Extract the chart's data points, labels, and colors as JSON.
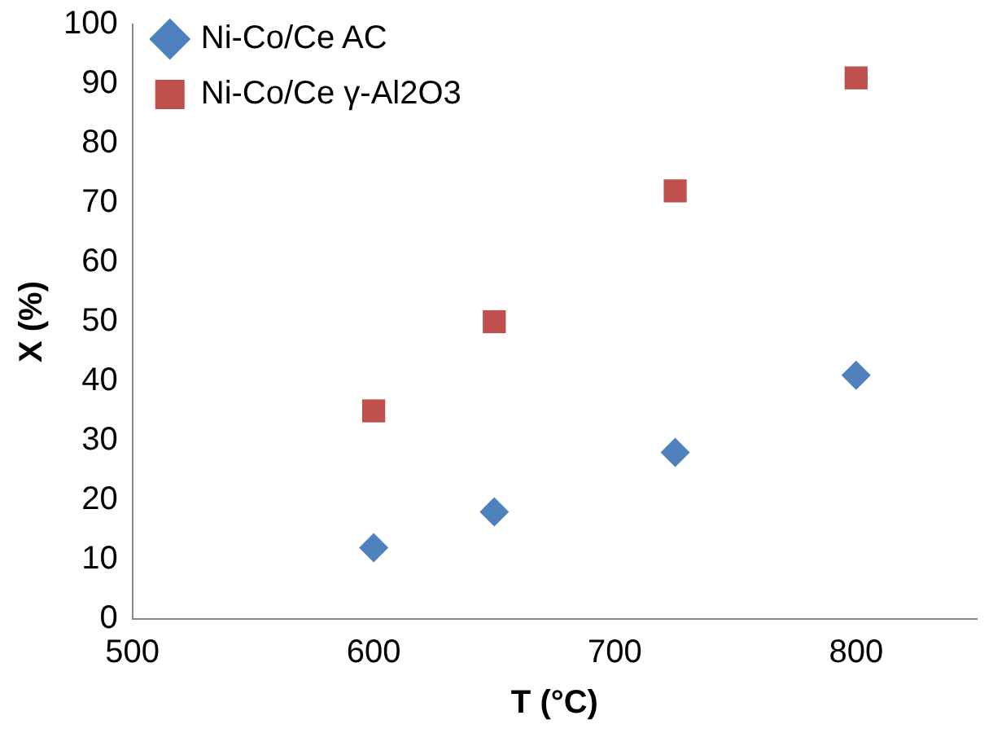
{
  "chart_data": {
    "type": "scatter",
    "xlabel": "T (°C)",
    "ylabel": "X (%)",
    "x": [
      600,
      650,
      725,
      800
    ],
    "series": [
      {
        "name": "Ni-Co/Ce AC",
        "color": "#4f81bd",
        "marker": "diamond",
        "values": [
          12,
          18,
          28,
          41
        ]
      },
      {
        "name": "Ni-Co/Ce γ-Al2O3",
        "color": "#c0504d",
        "marker": "square",
        "values": [
          35,
          50,
          72,
          91
        ]
      }
    ],
    "xlim": [
      500,
      850
    ],
    "xticks": [
      500,
      600,
      700,
      800
    ],
    "ylim": [
      0,
      100
    ],
    "yticks": [
      0,
      10,
      20,
      30,
      40,
      50,
      60,
      70,
      80,
      90,
      100
    ],
    "grid": false,
    "legend": "top left"
  }
}
